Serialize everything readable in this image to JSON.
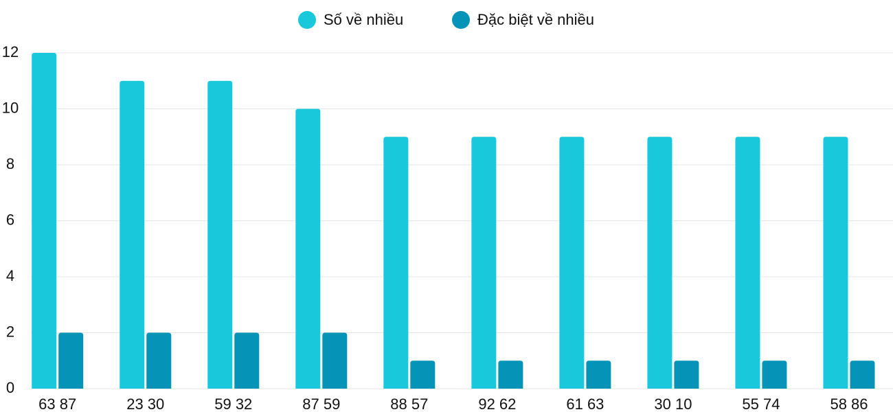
{
  "chart_data": {
    "type": "bar",
    "categories": [
      "63 87",
      "23 30",
      "59 32",
      "87 59",
      "88 57",
      "92 62",
      "61 63",
      "30 10",
      "55 74",
      "58 86"
    ],
    "series": [
      {
        "name": "Số về nhiều",
        "color": "#1ac8db",
        "values": [
          12,
          11,
          11,
          10,
          9,
          9,
          9,
          9,
          9,
          9
        ]
      },
      {
        "name": "Đặc biệt về nhiều",
        "color": "#0593b8",
        "values": [
          2,
          2,
          2,
          2,
          1,
          1,
          1,
          1,
          1,
          1
        ]
      }
    ],
    "ylim": [
      0,
      12
    ],
    "yticks": [
      0,
      2,
      4,
      6,
      8,
      10,
      12
    ],
    "grid": true
  }
}
